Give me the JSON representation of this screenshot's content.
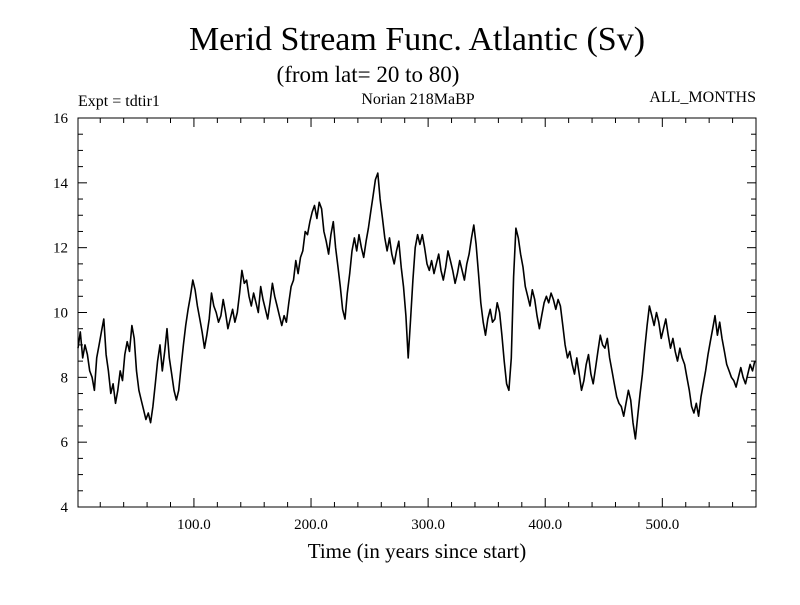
{
  "chart_data": {
    "type": "line",
    "title": "Merid Stream Func. Atlantic (Sv)",
    "subtitle": "(from lat= 20 to 80)",
    "annotations": {
      "left": "Expt = tdtir1",
      "center": "Norian   218MaBP",
      "right": "ALL_MONTHS"
    },
    "xlabel": "Time (in years since start)",
    "ylabel": "",
    "xlim": [
      1,
      580
    ],
    "ylim": [
      4,
      16
    ],
    "x_ticks": [
      100,
      200,
      300,
      400,
      500
    ],
    "x_tick_labels": [
      "100.0",
      "200.0",
      "300.0",
      "400.0",
      "500.0"
    ],
    "y_ticks": [
      4,
      6,
      8,
      10,
      12,
      14,
      16
    ],
    "y_tick_labels": [
      "4",
      "6",
      "8",
      "10",
      "12",
      "14",
      "16"
    ],
    "grid": false,
    "legend": "none",
    "line_color": "#000000",
    "series": [
      {
        "points": [
          [
            1,
            8.9
          ],
          [
            3,
            9.4
          ],
          [
            5,
            8.6
          ],
          [
            7,
            9.0
          ],
          [
            9,
            8.7
          ],
          [
            11,
            8.2
          ],
          [
            13,
            8.0
          ],
          [
            15,
            7.6
          ],
          [
            17,
            8.6
          ],
          [
            19,
            9.0
          ],
          [
            21,
            9.4
          ],
          [
            23,
            9.8
          ],
          [
            25,
            8.7
          ],
          [
            27,
            8.2
          ],
          [
            29,
            7.5
          ],
          [
            31,
            7.8
          ],
          [
            33,
            7.2
          ],
          [
            35,
            7.6
          ],
          [
            37,
            8.2
          ],
          [
            39,
            7.9
          ],
          [
            41,
            8.7
          ],
          [
            43,
            9.1
          ],
          [
            45,
            8.8
          ],
          [
            47,
            9.6
          ],
          [
            49,
            9.2
          ],
          [
            51,
            8.2
          ],
          [
            53,
            7.6
          ],
          [
            55,
            7.3
          ],
          [
            57,
            7.0
          ],
          [
            59,
            6.7
          ],
          [
            61,
            6.9
          ],
          [
            63,
            6.6
          ],
          [
            65,
            7.1
          ],
          [
            67,
            7.8
          ],
          [
            69,
            8.5
          ],
          [
            71,
            9.0
          ],
          [
            73,
            8.2
          ],
          [
            75,
            8.8
          ],
          [
            77,
            9.5
          ],
          [
            79,
            8.6
          ],
          [
            81,
            8.1
          ],
          [
            83,
            7.6
          ],
          [
            85,
            7.3
          ],
          [
            87,
            7.6
          ],
          [
            89,
            8.3
          ],
          [
            91,
            9.0
          ],
          [
            93,
            9.6
          ],
          [
            95,
            10.1
          ],
          [
            97,
            10.5
          ],
          [
            99,
            11.0
          ],
          [
            101,
            10.7
          ],
          [
            103,
            10.2
          ],
          [
            105,
            9.8
          ],
          [
            107,
            9.4
          ],
          [
            109,
            8.9
          ],
          [
            111,
            9.3
          ],
          [
            113,
            9.8
          ],
          [
            115,
            10.6
          ],
          [
            117,
            10.2
          ],
          [
            119,
            10.0
          ],
          [
            121,
            9.7
          ],
          [
            123,
            9.9
          ],
          [
            125,
            10.4
          ],
          [
            127,
            10.0
          ],
          [
            129,
            9.5
          ],
          [
            131,
            9.8
          ],
          [
            133,
            10.1
          ],
          [
            135,
            9.7
          ],
          [
            137,
            10.0
          ],
          [
            139,
            10.6
          ],
          [
            141,
            11.3
          ],
          [
            143,
            10.9
          ],
          [
            145,
            11.0
          ],
          [
            147,
            10.5
          ],
          [
            149,
            10.2
          ],
          [
            151,
            10.6
          ],
          [
            153,
            10.3
          ],
          [
            155,
            10.0
          ],
          [
            157,
            10.8
          ],
          [
            159,
            10.4
          ],
          [
            161,
            10.1
          ],
          [
            163,
            9.8
          ],
          [
            165,
            10.3
          ],
          [
            167,
            10.9
          ],
          [
            169,
            10.5
          ],
          [
            171,
            10.2
          ],
          [
            173,
            9.9
          ],
          [
            175,
            9.6
          ],
          [
            177,
            9.9
          ],
          [
            179,
            9.7
          ],
          [
            181,
            10.3
          ],
          [
            183,
            10.8
          ],
          [
            185,
            11.0
          ],
          [
            187,
            11.6
          ],
          [
            189,
            11.2
          ],
          [
            191,
            11.7
          ],
          [
            193,
            11.9
          ],
          [
            195,
            12.5
          ],
          [
            197,
            12.4
          ],
          [
            199,
            12.8
          ],
          [
            201,
            13.1
          ],
          [
            203,
            13.3
          ],
          [
            205,
            12.9
          ],
          [
            207,
            13.4
          ],
          [
            209,
            13.2
          ],
          [
            211,
            12.5
          ],
          [
            213,
            12.2
          ],
          [
            215,
            11.8
          ],
          [
            217,
            12.4
          ],
          [
            219,
            12.8
          ],
          [
            221,
            12.0
          ],
          [
            223,
            11.4
          ],
          [
            225,
            10.8
          ],
          [
            227,
            10.1
          ],
          [
            229,
            9.8
          ],
          [
            231,
            10.6
          ],
          [
            233,
            11.2
          ],
          [
            235,
            11.9
          ],
          [
            237,
            12.3
          ],
          [
            239,
            11.9
          ],
          [
            241,
            12.4
          ],
          [
            243,
            12.0
          ],
          [
            245,
            11.7
          ],
          [
            247,
            12.2
          ],
          [
            249,
            12.6
          ],
          [
            251,
            13.1
          ],
          [
            253,
            13.6
          ],
          [
            255,
            14.1
          ],
          [
            257,
            14.3
          ],
          [
            259,
            13.5
          ],
          [
            261,
            12.9
          ],
          [
            263,
            12.3
          ],
          [
            265,
            11.9
          ],
          [
            267,
            12.3
          ],
          [
            269,
            11.8
          ],
          [
            271,
            11.5
          ],
          [
            273,
            11.9
          ],
          [
            275,
            12.2
          ],
          [
            277,
            11.4
          ],
          [
            279,
            10.8
          ],
          [
            281,
            9.9
          ],
          [
            283,
            8.6
          ],
          [
            285,
            9.8
          ],
          [
            287,
            11.0
          ],
          [
            289,
            12.0
          ],
          [
            291,
            12.4
          ],
          [
            293,
            12.1
          ],
          [
            295,
            12.4
          ],
          [
            297,
            12.0
          ],
          [
            299,
            11.5
          ],
          [
            301,
            11.3
          ],
          [
            303,
            11.6
          ],
          [
            305,
            11.2
          ],
          [
            307,
            11.5
          ],
          [
            309,
            11.8
          ],
          [
            311,
            11.3
          ],
          [
            313,
            11.0
          ],
          [
            315,
            11.4
          ],
          [
            317,
            11.9
          ],
          [
            319,
            11.6
          ],
          [
            321,
            11.3
          ],
          [
            323,
            10.9
          ],
          [
            325,
            11.2
          ],
          [
            327,
            11.6
          ],
          [
            329,
            11.3
          ],
          [
            331,
            11.0
          ],
          [
            333,
            11.5
          ],
          [
            335,
            11.8
          ],
          [
            337,
            12.3
          ],
          [
            339,
            12.7
          ],
          [
            341,
            12.1
          ],
          [
            343,
            11.2
          ],
          [
            345,
            10.3
          ],
          [
            347,
            9.7
          ],
          [
            349,
            9.3
          ],
          [
            351,
            9.8
          ],
          [
            353,
            10.1
          ],
          [
            355,
            9.7
          ],
          [
            357,
            9.8
          ],
          [
            359,
            10.3
          ],
          [
            361,
            10.0
          ],
          [
            363,
            9.3
          ],
          [
            365,
            8.5
          ],
          [
            367,
            7.8
          ],
          [
            369,
            7.6
          ],
          [
            371,
            8.6
          ],
          [
            373,
            11.1
          ],
          [
            375,
            12.6
          ],
          [
            377,
            12.3
          ],
          [
            379,
            11.8
          ],
          [
            381,
            11.4
          ],
          [
            383,
            10.8
          ],
          [
            385,
            10.5
          ],
          [
            387,
            10.2
          ],
          [
            389,
            10.7
          ],
          [
            391,
            10.4
          ],
          [
            393,
            9.9
          ],
          [
            395,
            9.5
          ],
          [
            397,
            9.9
          ],
          [
            399,
            10.3
          ],
          [
            401,
            10.5
          ],
          [
            403,
            10.3
          ],
          [
            405,
            10.6
          ],
          [
            407,
            10.4
          ],
          [
            409,
            10.1
          ],
          [
            411,
            10.4
          ],
          [
            413,
            10.2
          ],
          [
            415,
            9.6
          ],
          [
            417,
            9.0
          ],
          [
            419,
            8.6
          ],
          [
            421,
            8.8
          ],
          [
            423,
            8.4
          ],
          [
            425,
            8.1
          ],
          [
            427,
            8.6
          ],
          [
            429,
            8.1
          ],
          [
            431,
            7.6
          ],
          [
            433,
            7.9
          ],
          [
            435,
            8.4
          ],
          [
            437,
            8.7
          ],
          [
            439,
            8.1
          ],
          [
            441,
            7.8
          ],
          [
            443,
            8.3
          ],
          [
            445,
            8.8
          ],
          [
            447,
            9.3
          ],
          [
            449,
            9.0
          ],
          [
            451,
            8.9
          ],
          [
            453,
            9.2
          ],
          [
            455,
            8.6
          ],
          [
            457,
            8.2
          ],
          [
            459,
            7.8
          ],
          [
            461,
            7.4
          ],
          [
            463,
            7.2
          ],
          [
            465,
            7.1
          ],
          [
            467,
            6.8
          ],
          [
            469,
            7.2
          ],
          [
            471,
            7.6
          ],
          [
            473,
            7.3
          ],
          [
            475,
            6.6
          ],
          [
            477,
            6.1
          ],
          [
            479,
            6.8
          ],
          [
            481,
            7.5
          ],
          [
            483,
            8.1
          ],
          [
            485,
            8.9
          ],
          [
            487,
            9.6
          ],
          [
            489,
            10.2
          ],
          [
            491,
            9.9
          ],
          [
            493,
            9.6
          ],
          [
            495,
            10.0
          ],
          [
            497,
            9.7
          ],
          [
            499,
            9.2
          ],
          [
            501,
            9.5
          ],
          [
            503,
            9.8
          ],
          [
            505,
            9.3
          ],
          [
            507,
            8.9
          ],
          [
            509,
            9.2
          ],
          [
            511,
            8.8
          ],
          [
            513,
            8.5
          ],
          [
            515,
            8.9
          ],
          [
            517,
            8.6
          ],
          [
            519,
            8.4
          ],
          [
            521,
            8.0
          ],
          [
            523,
            7.6
          ],
          [
            525,
            7.1
          ],
          [
            527,
            6.9
          ],
          [
            529,
            7.2
          ],
          [
            531,
            6.8
          ],
          [
            533,
            7.4
          ],
          [
            535,
            7.8
          ],
          [
            537,
            8.2
          ],
          [
            539,
            8.7
          ],
          [
            541,
            9.1
          ],
          [
            543,
            9.5
          ],
          [
            545,
            9.9
          ],
          [
            547,
            9.3
          ],
          [
            549,
            9.7
          ],
          [
            551,
            9.2
          ],
          [
            553,
            8.8
          ],
          [
            555,
            8.4
          ],
          [
            557,
            8.2
          ],
          [
            559,
            8.0
          ],
          [
            561,
            7.9
          ],
          [
            563,
            7.7
          ],
          [
            565,
            8.0
          ],
          [
            567,
            8.3
          ],
          [
            569,
            8.0
          ],
          [
            571,
            7.8
          ],
          [
            573,
            8.1
          ],
          [
            575,
            8.4
          ],
          [
            577,
            8.2
          ],
          [
            579,
            8.5
          ]
        ]
      }
    ]
  }
}
